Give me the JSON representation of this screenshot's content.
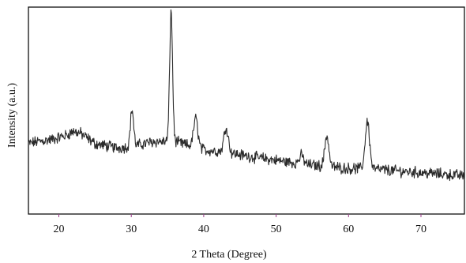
{
  "chart_data": {
    "type": "line",
    "title": "",
    "xlabel": "2 Theta (Degree)",
    "ylabel": "Intensity (a.u.)",
    "xlim": [
      15.8,
      76
    ],
    "ylim": [
      0,
      100
    ],
    "x_ticks": [
      20,
      30,
      40,
      50,
      60,
      70
    ],
    "x_tick_labels": [
      "20",
      "30",
      "40",
      "50",
      "60",
      "70"
    ],
    "y_ticks_shown": false,
    "grid": false,
    "legend": "none",
    "colors": {
      "line": "#2b2b2b",
      "axis": "#111111",
      "tick": "#9a3a8a"
    },
    "series": [
      {
        "name": "",
        "noise_amplitude": 2.2,
        "baseline": [
          [
            15.8,
            34
          ],
          [
            17,
            35
          ],
          [
            19,
            36
          ],
          [
            21,
            38
          ],
          [
            22,
            40
          ],
          [
            23,
            39
          ],
          [
            25,
            34
          ],
          [
            28,
            32
          ],
          [
            30,
            32.5
          ],
          [
            33,
            35
          ],
          [
            36,
            35
          ],
          [
            38,
            33
          ],
          [
            40,
            31
          ],
          [
            43,
            30
          ],
          [
            46,
            28
          ],
          [
            50,
            26
          ],
          [
            54,
            24
          ],
          [
            57,
            23
          ],
          [
            60,
            22
          ],
          [
            63,
            22
          ],
          [
            66,
            21
          ],
          [
            70,
            20
          ],
          [
            74,
            19
          ],
          [
            76,
            18.5
          ]
        ],
        "peaks": [
          {
            "x": 30.1,
            "height": 18,
            "width": 0.22
          },
          {
            "x": 35.5,
            "height": 63,
            "width": 0.2
          },
          {
            "x": 38.9,
            "height": 14,
            "width": 0.3
          },
          {
            "x": 43.1,
            "height": 12,
            "width": 0.3
          },
          {
            "x": 53.5,
            "height": 4,
            "width": 0.3
          },
          {
            "x": 57.0,
            "height": 15,
            "width": 0.28
          },
          {
            "x": 62.6,
            "height": 23,
            "width": 0.3
          }
        ]
      }
    ]
  }
}
